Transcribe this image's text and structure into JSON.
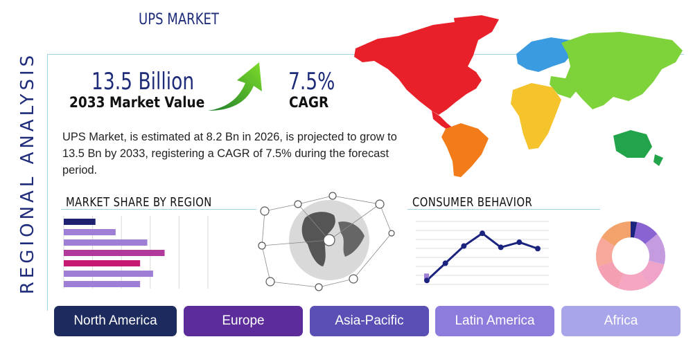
{
  "page_title": "UPS MARKET",
  "side_title": "REGIONAL ANALYSIS",
  "stats": {
    "market_value": "13.5 Billion",
    "market_value_label": "2033 Market Value",
    "cagr_value": "7.5%",
    "cagr_label": "CAGR"
  },
  "description": "UPS Market, is estimated at 8.2 Bn in 2026, is projected to grow to 13.5 Bn by 2033, registering a CAGR of 7.5% during the forecast period.",
  "sections": {
    "market_share_title": "MARKET SHARE BY REGION",
    "consumer_title": "CONSUMER BEHAVIOR"
  },
  "regions": [
    "North America",
    "Europe",
    "Asia-Pacific",
    "Latin America",
    "Africa"
  ],
  "colors": {
    "navy": "#1e2070",
    "accent": "#1e2c7a",
    "frame": "#9fd3ea",
    "tabs": [
      "#1c2a5e",
      "#5b2c9a",
      "#5a4fb5",
      "#8e7cdc",
      "#a8a5ea"
    ]
  },
  "chart_data": [
    {
      "type": "bar",
      "orientation": "horizontal",
      "values": [
        22,
        36,
        58,
        70,
        53,
        62,
        53
      ],
      "colors": [
        "#1e2070",
        "#9f7fd6",
        "#9f7fd6",
        "#b0399a",
        "#c61a72",
        "#9f7fd6",
        "#9f7fd6"
      ],
      "xlim": [
        0,
        100
      ]
    },
    {
      "type": "line",
      "x": [
        1,
        2,
        3,
        4,
        5,
        6,
        7
      ],
      "values": [
        3,
        30,
        57,
        77,
        55,
        63,
        53
      ],
      "ylim": [
        0,
        100
      ],
      "color": "#1a237e"
    },
    {
      "type": "pie",
      "style": "donut",
      "values": [
        3,
        11,
        15,
        12,
        15,
        14,
        14,
        16
      ],
      "colors": [
        "#1a237e",
        "#8a63d2",
        "#c59be0",
        "#f0a3c8",
        "#f4a6c2",
        "#f59fb2",
        "#f8a89b",
        "#f2a26a"
      ]
    }
  ]
}
